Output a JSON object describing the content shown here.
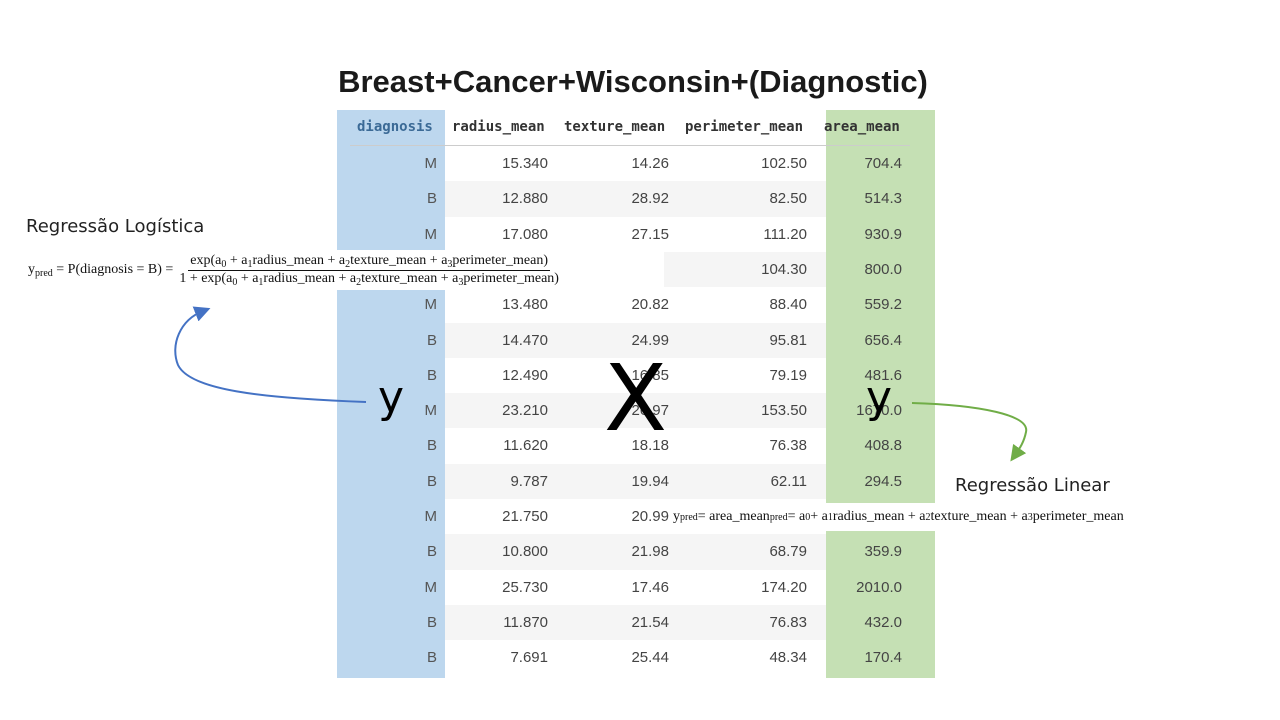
{
  "header": {
    "title": "Breast+Cancer+Wisconsin+(Diagnostic)"
  },
  "table": {
    "columns": [
      "diagnosis",
      "radius_mean",
      "texture_mean",
      "perimeter_mean",
      "area_mean"
    ],
    "rows": [
      [
        "M",
        "15.340",
        "14.26",
        "102.50",
        "704.4"
      ],
      [
        "B",
        "12.880",
        "28.92",
        "82.50",
        "514.3"
      ],
      [
        "M",
        "17.080",
        "27.15",
        "111.20",
        "930.9"
      ],
      [
        null,
        null,
        null,
        "104.30",
        "800.0"
      ],
      [
        "M",
        "13.480",
        "20.82",
        "88.40",
        "559.2"
      ],
      [
        "B",
        "14.470",
        "24.99",
        "95.81",
        "656.4"
      ],
      [
        "B",
        "12.490",
        "16.85",
        "79.19",
        "481.6"
      ],
      [
        "M",
        "23.210",
        "26.97",
        "153.50",
        "1670.0"
      ],
      [
        "B",
        "11.620",
        "18.18",
        "76.38",
        "408.8"
      ],
      [
        "B",
        "9.787",
        "19.94",
        "62.11",
        "294.5"
      ],
      [
        "M",
        "21.750",
        "20.99",
        null,
        null
      ],
      [
        "B",
        "10.800",
        "21.98",
        "68.79",
        "359.9"
      ],
      [
        "M",
        "25.730",
        "17.46",
        "174.20",
        "2010.0"
      ],
      [
        "B",
        "11.870",
        "21.54",
        "76.83",
        "432.0"
      ],
      [
        "B",
        "7.691",
        "25.44",
        "48.34",
        "170.4"
      ]
    ]
  },
  "annotations": {
    "target_left": "y",
    "features": "X",
    "target_right": "y",
    "logistic_label": "Regressão Logística",
    "linear_label": "Regressão Linear"
  },
  "formulas": {
    "logistic": {
      "lhs": [
        {
          "text": "y"
        },
        {
          "sub": "pred"
        },
        {
          "text": " = P(diagnosis = B) ="
        }
      ],
      "numerator": [
        {
          "text": "exp(a"
        },
        {
          "sub": "0"
        },
        {
          "text": " + a"
        },
        {
          "sub": "1"
        },
        {
          "text": "radius_mean + a"
        },
        {
          "sub": "2"
        },
        {
          "text": "texture_mean + a"
        },
        {
          "sub": "3"
        },
        {
          "text": "perimeter_mean)"
        }
      ],
      "denominator": [
        {
          "text": "1 + exp(a"
        },
        {
          "sub": "0"
        },
        {
          "text": " + a"
        },
        {
          "sub": "1"
        },
        {
          "text": "radius_mean + a"
        },
        {
          "sub": "2"
        },
        {
          "text": "texture_mean + a"
        },
        {
          "sub": "3"
        },
        {
          "text": "perimeter_mean)"
        }
      ]
    },
    "linear": [
      {
        "text": "y"
      },
      {
        "sub": "pred"
      },
      {
        "text": " = area_mean"
      },
      {
        "sub": "pred"
      },
      {
        "text": " = a"
      },
      {
        "sub": "0"
      },
      {
        "text": " + a"
      },
      {
        "sub": "1"
      },
      {
        "text": "radius_mean + a"
      },
      {
        "sub": "2"
      },
      {
        "text": "texture_mean + a"
      },
      {
        "sub": "3"
      },
      {
        "text": "perimeter_mean"
      }
    ]
  }
}
